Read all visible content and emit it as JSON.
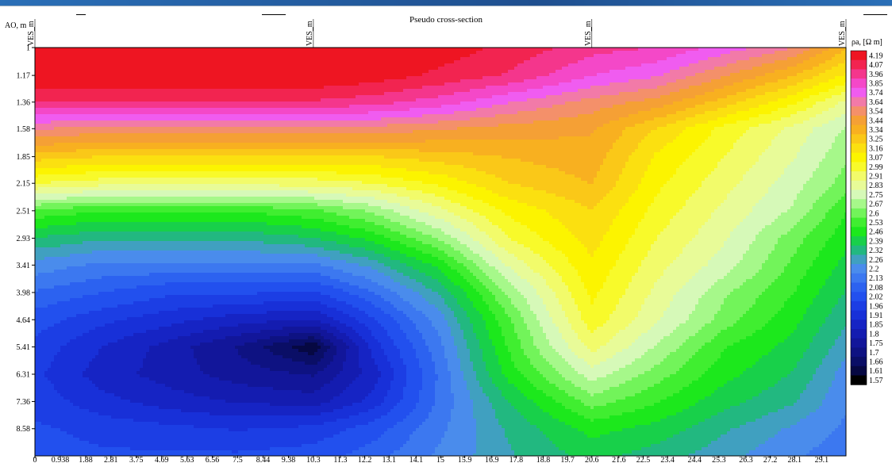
{
  "chart_data": {
    "type": "heatmap",
    "title": "Pseudo cross-section",
    "ylabel": "AO, m",
    "colorbar_label": "ρa, [Ω m]",
    "x_ticks": [
      "0",
      "0.938",
      "1.88",
      "2.81",
      "3.75",
      "4.69",
      "5.63",
      "6.56",
      "7.5",
      "8.44",
      "9.38",
      "10.3",
      "11.3",
      "12.2",
      "13.1",
      "14.1",
      "15",
      "15.9",
      "16.9",
      "17.8",
      "18.8",
      "19.7",
      "20.6",
      "21.6",
      "22.5",
      "23.4",
      "24.4",
      "25.3",
      "26.3",
      "27.2",
      "28.1",
      "29.1"
    ],
    "y_ticks": [
      "1",
      "1.17",
      "1.36",
      "1.58",
      "1.85",
      "2.15",
      "2.51",
      "2.93",
      "3.41",
      "3.98",
      "4.64",
      "5.41",
      "6.31",
      "7.36",
      "8.58"
    ],
    "y_log": true,
    "y_inverted": true,
    "stations": [
      {
        "name": "VES_m",
        "x": 0
      },
      {
        "name": "VES_m",
        "x": 10.3
      },
      {
        "name": "VES_m",
        "x": 20.6
      },
      {
        "name": "VES_m",
        "x": 30.0
      }
    ],
    "x_range": [
      0,
      30.0
    ],
    "y_range": [
      1,
      10
    ],
    "colorbar_levels": [
      "4.19",
      "4.07",
      "3.96",
      "3.85",
      "3.74",
      "3.64",
      "3.54",
      "3.44",
      "3.34",
      "3.25",
      "3.16",
      "3.07",
      "2.99",
      "2.91",
      "2.83",
      "2.75",
      "2.67",
      "2.6",
      "2.53",
      "2.46",
      "2.39",
      "2.32",
      "2.26",
      "2.2",
      "2.13",
      "2.08",
      "2.02",
      "1.96",
      "1.91",
      "1.85",
      "1.8",
      "1.75",
      "1.7",
      "1.66",
      "1.61",
      "1.57"
    ],
    "colorbar_colors": [
      "#ee1522",
      "#f22450",
      "#f4368c",
      "#f448c8",
      "#f05cf0",
      "#f27aa8",
      "#f4906a",
      "#f5a035",
      "#f8b020",
      "#fac818",
      "#fbe010",
      "#fcf400",
      "#f8fa2a",
      "#f2fb6a",
      "#e8fb98",
      "#d6f9b8",
      "#a6f88a",
      "#72f45a",
      "#40ee30",
      "#1ce81c",
      "#18d04a",
      "#22b880",
      "#40a0c0",
      "#4a8cec",
      "#3c78f0",
      "#2c62f0",
      "#2250ee",
      "#1c3ee4",
      "#1830d8",
      "#1624c4",
      "#141cb0",
      "#12169a",
      "#0e1282",
      "#0a0e66",
      "#060842",
      "#000000"
    ],
    "grid_x": [
      0,
      2.5,
      5,
      7.5,
      10.3,
      12.5,
      15,
      17.5,
      20.6,
      23,
      25.5,
      28,
      30
    ],
    "grid_y": [
      1,
      1.17,
      1.36,
      1.58,
      1.85,
      2.15,
      2.51,
      2.93,
      3.41,
      3.98,
      4.64,
      5.41,
      6.31,
      7.36,
      8.58,
      10
    ],
    "grid_values": [
      [
        4.3,
        4.3,
        4.3,
        4.3,
        4.3,
        4.25,
        4.2,
        4.1,
        3.95,
        3.9,
        3.75,
        3.6,
        3.3
      ],
      [
        4.25,
        4.25,
        4.25,
        4.25,
        4.25,
        4.2,
        4.1,
        4.0,
        3.8,
        3.7,
        3.5,
        3.3,
        3.1
      ],
      [
        4.0,
        4.0,
        4.0,
        4.0,
        4.0,
        3.95,
        3.85,
        3.7,
        3.55,
        3.45,
        3.25,
        3.05,
        2.85
      ],
      [
        3.6,
        3.55,
        3.55,
        3.55,
        3.55,
        3.55,
        3.5,
        3.45,
        3.4,
        3.2,
        3.0,
        2.85,
        2.7
      ],
      [
        3.25,
        3.2,
        3.2,
        3.2,
        3.2,
        3.2,
        3.25,
        3.3,
        3.35,
        3.1,
        2.95,
        2.8,
        2.65
      ],
      [
        2.95,
        2.9,
        2.9,
        2.9,
        2.9,
        2.95,
        3.05,
        3.2,
        3.3,
        3.05,
        2.9,
        2.75,
        2.6
      ],
      [
        2.55,
        2.5,
        2.5,
        2.5,
        2.55,
        2.65,
        2.85,
        3.05,
        3.2,
        3.0,
        2.85,
        2.7,
        2.5
      ],
      [
        2.35,
        2.3,
        2.3,
        2.3,
        2.35,
        2.45,
        2.65,
        2.95,
        3.15,
        2.95,
        2.8,
        2.6,
        2.45
      ],
      [
        2.2,
        2.15,
        2.15,
        2.15,
        2.15,
        2.25,
        2.45,
        2.8,
        3.1,
        2.9,
        2.75,
        2.55,
        2.4
      ],
      [
        2.1,
        2.05,
        2.0,
        2.0,
        1.98,
        2.1,
        2.3,
        2.65,
        3.05,
        2.85,
        2.65,
        2.5,
        2.35
      ],
      [
        2.02,
        1.95,
        1.9,
        1.85,
        1.82,
        1.98,
        2.2,
        2.55,
        3.0,
        2.8,
        2.6,
        2.45,
        2.3
      ],
      [
        1.97,
        1.88,
        1.8,
        1.72,
        1.6,
        1.9,
        2.15,
        2.5,
        2.9,
        2.7,
        2.5,
        2.4,
        2.25
      ],
      [
        1.95,
        1.85,
        1.8,
        1.75,
        1.72,
        1.85,
        2.12,
        2.45,
        2.75,
        2.6,
        2.45,
        2.35,
        2.2
      ],
      [
        1.97,
        1.9,
        1.85,
        1.82,
        1.8,
        1.9,
        2.12,
        2.35,
        2.6,
        2.5,
        2.38,
        2.3,
        2.18
      ],
      [
        2.0,
        1.97,
        1.95,
        1.93,
        1.95,
        2.02,
        2.15,
        2.3,
        2.45,
        2.4,
        2.3,
        2.22,
        2.15
      ],
      [
        2.02,
        2.0,
        2.0,
        2.0,
        2.02,
        2.08,
        2.18,
        2.28,
        2.38,
        2.32,
        2.25,
        2.18,
        2.12
      ]
    ]
  }
}
